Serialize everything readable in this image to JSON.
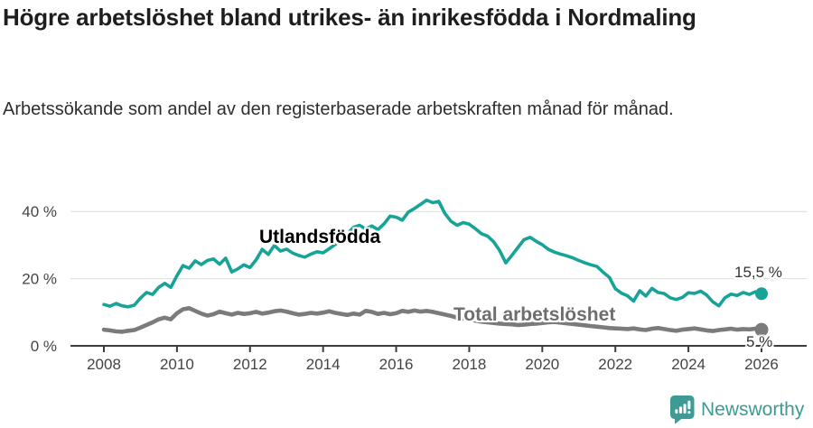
{
  "title": "Högre arbetslöshet bland utrikes- än inrikesfödda i Nordmaling",
  "subtitle": "Arbetssökande som andel av den registerbaserade arbetskraften månad för månad.",
  "chart_data": {
    "type": "line",
    "x_unit": "year",
    "y_unit": "%",
    "xlim": [
      2008,
      2026
    ],
    "ylim": [
      0,
      46
    ],
    "grid": "horizontal",
    "x_start": 2008,
    "x_step_months": 2,
    "x_ticks": [
      2008,
      2010,
      2012,
      2014,
      2016,
      2018,
      2020,
      2022,
      2024,
      2026
    ],
    "x_tick_labels": [
      "2008",
      "2010",
      "2012",
      "2014",
      "2016",
      "2018",
      "2020",
      "2022",
      "2024",
      "2026"
    ],
    "y_ticks": [
      0,
      20,
      40
    ],
    "y_tick_labels": [
      "0 %",
      "20 %",
      "40 %"
    ],
    "legend_position": "inline-labels",
    "series": [
      {
        "name": "Utlandsfödda",
        "color": "#17a398",
        "end_label": "15,5 %",
        "end_value": 15.5,
        "values": [
          12.3,
          11.8,
          12.6,
          11.9,
          11.6,
          12.1,
          14.2,
          15.9,
          15.3,
          17.4,
          18.6,
          17.4,
          20.9,
          23.9,
          23.1,
          25.3,
          24.2,
          25.4,
          25.9,
          24.3,
          26.1,
          22.0,
          22.9,
          24.1,
          23.3,
          25.6,
          28.7,
          27.2,
          29.9,
          28.2,
          28.8,
          27.6,
          26.9,
          26.4,
          27.3,
          28.0,
          27.7,
          28.9,
          30.2,
          31.6,
          33.3,
          35.3,
          35.9,
          34.8,
          35.7,
          34.6,
          36.3,
          38.6,
          38.3,
          37.4,
          39.8,
          40.9,
          42.1,
          43.4,
          42.6,
          43.0,
          39.4,
          37.1,
          35.9,
          36.7,
          36.2,
          34.9,
          33.4,
          32.7,
          31.0,
          28.4,
          24.7,
          26.9,
          29.3,
          31.6,
          32.3,
          31.1,
          30.1,
          28.7,
          27.9,
          27.3,
          26.8,
          26.2,
          25.4,
          24.7,
          24.1,
          23.6,
          21.9,
          20.4,
          17.0,
          15.7,
          14.9,
          13.3,
          16.4,
          14.8,
          17.1,
          15.9,
          15.6,
          14.3,
          13.8,
          14.4,
          15.8,
          15.6,
          16.3,
          15.1,
          13.1,
          11.9,
          14.3,
          15.4,
          15.0,
          15.9,
          15.3,
          16.1,
          15.5
        ]
      },
      {
        "name": "Total arbetslöshet",
        "color": "#7b7b7b",
        "end_label": "5 %",
        "end_value": 5,
        "values": [
          4.8,
          4.6,
          4.3,
          4.2,
          4.5,
          4.7,
          5.4,
          6.2,
          7.0,
          7.9,
          8.4,
          7.9,
          9.7,
          10.9,
          11.2,
          10.4,
          9.6,
          9.0,
          9.4,
          10.2,
          9.7,
          9.3,
          9.8,
          9.5,
          9.7,
          10.1,
          9.6,
          9.9,
          10.3,
          10.5,
          10.2,
          9.7,
          9.3,
          9.5,
          9.8,
          9.6,
          9.9,
          10.3,
          9.8,
          9.5,
          9.2,
          9.6,
          9.3,
          10.4,
          10.1,
          9.5,
          9.8,
          9.4,
          9.7,
          10.4,
          10.1,
          10.5,
          10.2,
          10.4,
          10.1,
          9.7,
          9.3,
          8.9,
          8.4,
          8.1,
          7.8,
          7.5,
          7.2,
          7.0,
          6.8,
          6.6,
          6.5,
          6.4,
          6.2,
          6.3,
          6.5,
          6.6,
          6.8,
          7.0,
          7.1,
          6.9,
          6.7,
          6.5,
          6.3,
          6.1,
          5.9,
          5.7,
          5.5,
          5.3,
          5.2,
          5.1,
          5.0,
          5.2,
          4.9,
          4.7,
          5.1,
          5.3,
          5.0,
          4.7,
          4.5,
          4.8,
          5.0,
          5.2,
          4.9,
          4.6,
          4.4,
          4.7,
          4.9,
          5.1,
          4.8,
          5.0,
          4.9,
          5.1,
          4.8
        ]
      }
    ],
    "colors": {
      "grid": "#dcdcdc",
      "axis": "#3c3c3c",
      "tick_text": "#444444"
    }
  },
  "branding": {
    "logo_text": "Newsworthy",
    "logo_icon": "newsworthy-bubble-chart-icon",
    "logo_color": "#3d9a94"
  }
}
